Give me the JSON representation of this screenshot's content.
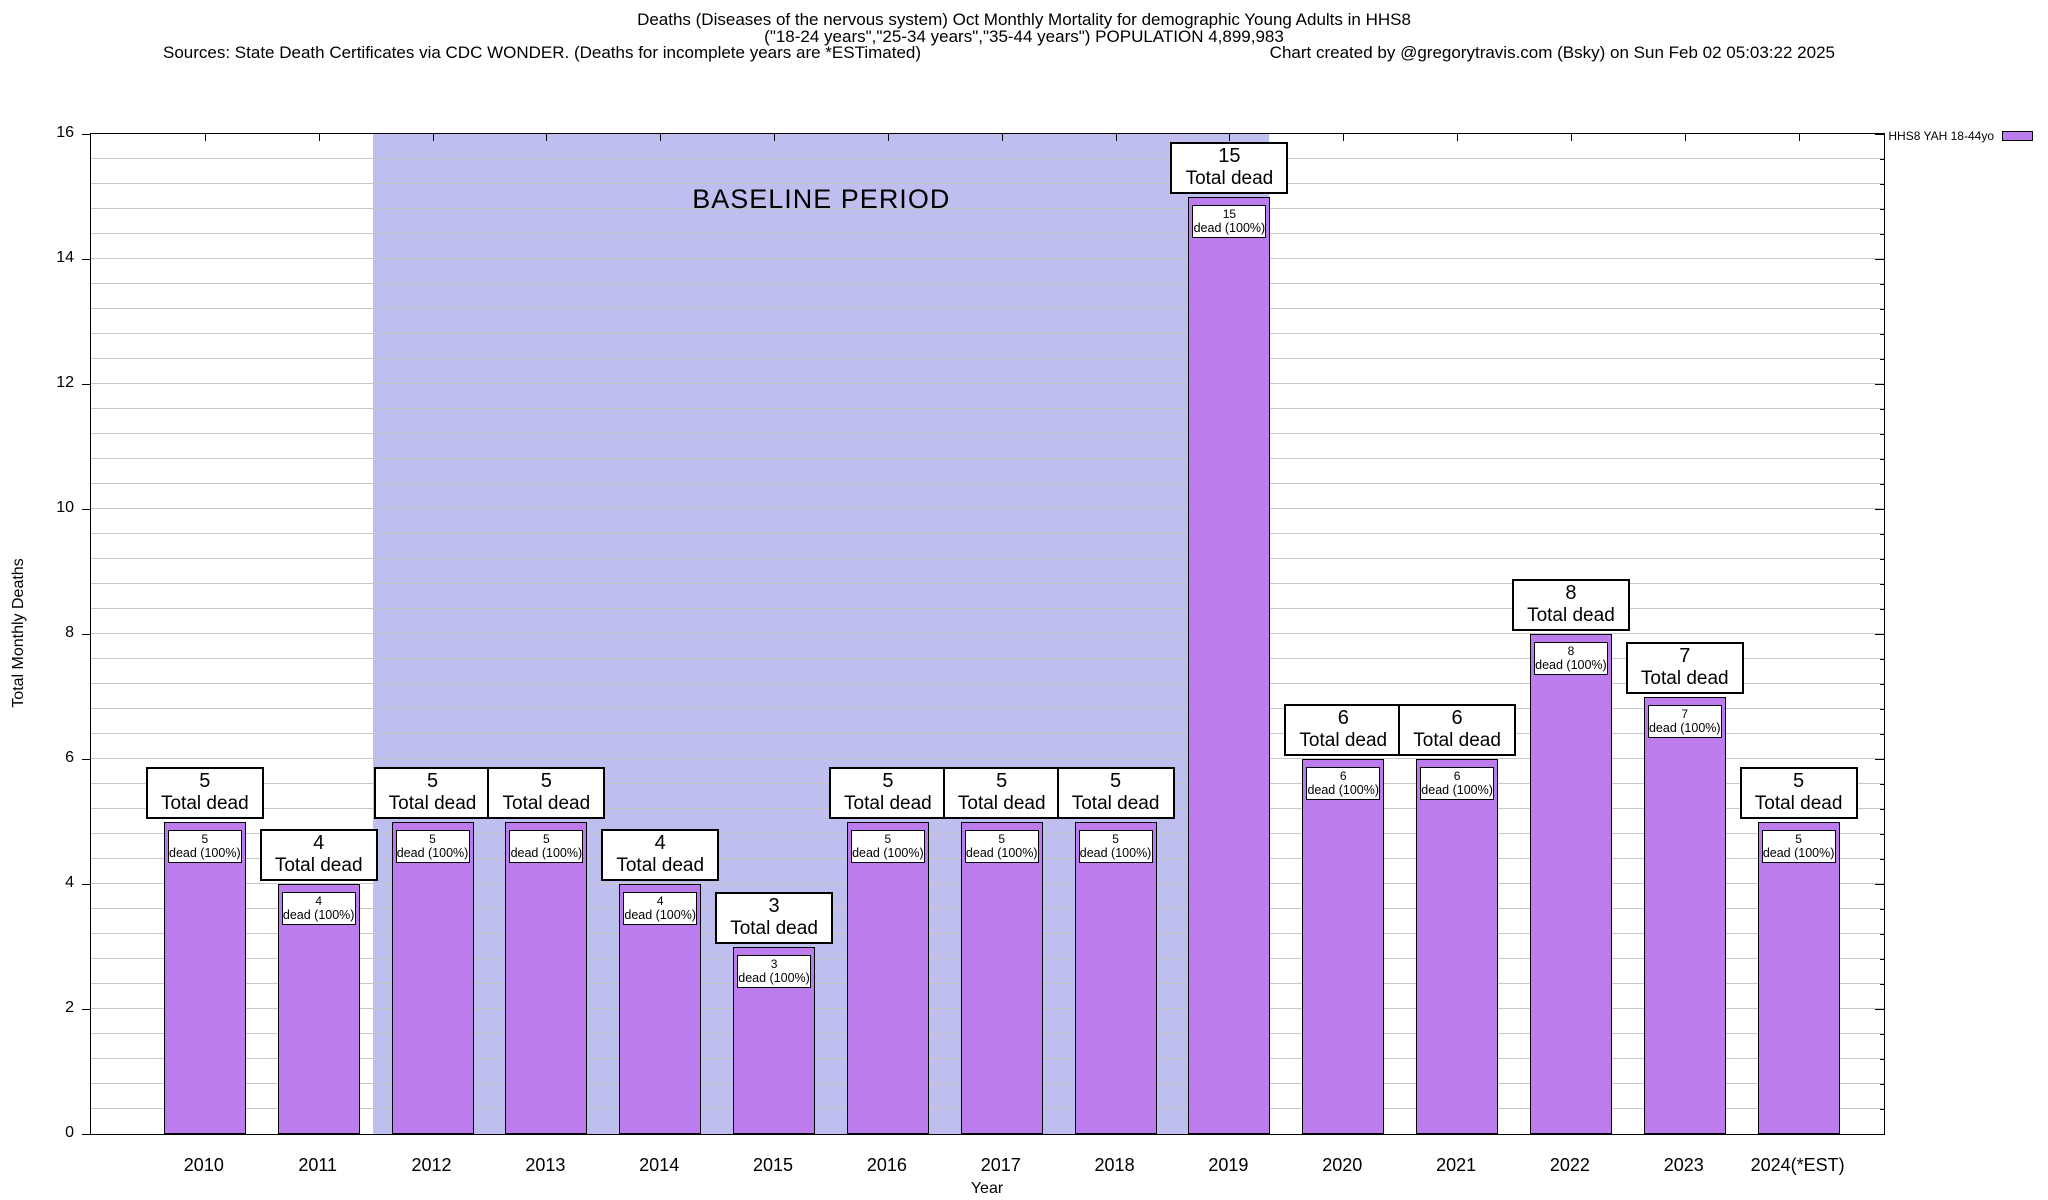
{
  "header": {
    "title_line1": "Deaths (Diseases of the nervous system) Oct Monthly Mortality for demographic Young Adults in HHS8",
    "title_line2": "(\"18-24 years\",\"25-34 years\",\"35-44 years\") POPULATION 4,899,983",
    "sources_line": "Sources: State Death Certificates via CDC WONDER. (Deaths for incomplete years are *ESTimated)",
    "credit_line": "Chart created by @gregorytravis.com (Bsky) on Sun Feb 02 05:03:22 2025"
  },
  "legend": {
    "label": "HHS8 YAH 18-44yo"
  },
  "axes": {
    "y_title": "Total Monthly Deaths",
    "x_title": "Year",
    "y_tick_labels": [
      "0",
      "2",
      "4",
      "6",
      "8",
      "10",
      "12",
      "14",
      "16"
    ]
  },
  "chart_data": {
    "type": "bar",
    "title": "Deaths (Diseases of the nervous system) Oct Monthly Mortality for demographic Young Adults in HHS8",
    "xlabel": "Year",
    "ylabel": "Total Monthly Deaths",
    "ylim": [
      0,
      16
    ],
    "y_major_step": 2,
    "y_minor_step": 0.4,
    "grid": "on",
    "legend_position": "top-right-outside",
    "categories": [
      "2010",
      "2011",
      "2012",
      "2013",
      "2014",
      "2015",
      "2016",
      "2017",
      "2018",
      "2019",
      "2020",
      "2021",
      "2022",
      "2023",
      "2024(*EST)"
    ],
    "series": [
      {
        "name": "HHS8 YAH 18-44yo",
        "values": [
          5,
          4,
          5,
          5,
          4,
          3,
          5,
          5,
          5,
          15,
          6,
          6,
          8,
          7,
          5
        ]
      }
    ],
    "bar_top_label_suffix": "Total dead",
    "bar_inner_label_suffix": "dead (100%)",
    "annotations": {
      "baseline_label": "BASELINE PERIOD",
      "baseline_from_category": "2012",
      "baseline_to_category": "2019"
    },
    "colors": {
      "bar_fill": "#BD7CEE",
      "bar_border": "#000000",
      "baseline_fill": "#BFBFEF",
      "gridline": "#C8C8C8",
      "text": "#000000",
      "plot_background": "#FFFFFF"
    }
  }
}
